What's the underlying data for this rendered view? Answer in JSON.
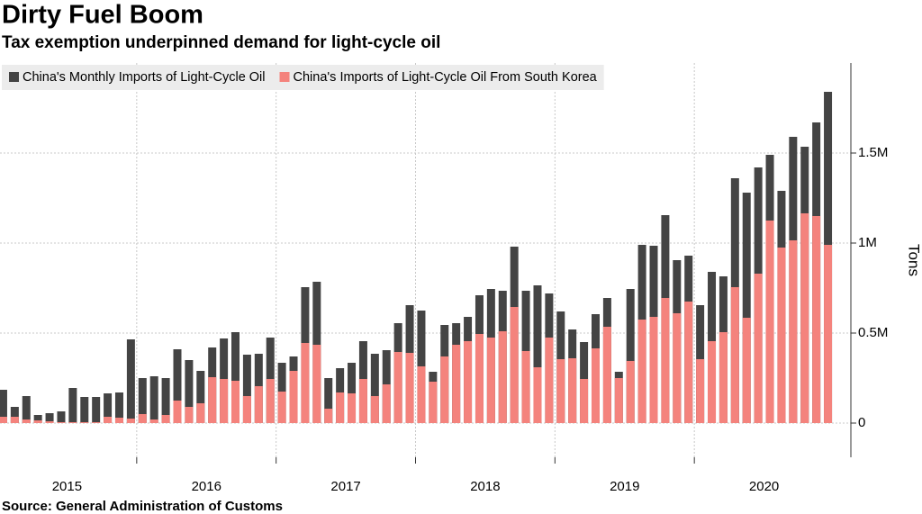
{
  "chart_data": {
    "type": "bar",
    "title": "Dirty Fuel Boom",
    "subtitle": "Tax exemption underpinned demand for light-cycle oil",
    "source": "Source:  General Administration of Customs",
    "y_label": "Tons",
    "year_labels": [
      "2015",
      "2016",
      "2017",
      "2018",
      "2019",
      "2020"
    ],
    "categories": [
      null,
      null,
      null,
      null,
      null,
      null,
      null,
      null,
      null,
      null,
      null,
      null,
      null,
      null,
      null,
      null,
      null,
      null,
      null,
      null,
      null,
      null,
      null,
      null,
      null,
      null,
      null,
      null,
      null,
      null,
      null,
      null,
      null,
      null,
      null,
      null,
      null,
      null,
      null,
      null,
      null,
      null,
      null,
      null,
      null,
      null,
      null,
      null,
      null,
      null,
      null,
      null,
      null,
      null,
      null,
      null,
      null,
      null,
      null,
      null,
      null,
      null,
      null,
      null,
      null,
      null,
      null,
      null,
      null,
      null,
      null,
      null
    ],
    "series": [
      {
        "name": "China's Monthly Imports of Light-Cycle Oil",
        "color": "#444444",
        "values": [
          185000,
          90000,
          150000,
          45000,
          55000,
          65000,
          195000,
          145000,
          145000,
          165000,
          170000,
          465000,
          250000,
          260000,
          250000,
          410000,
          350000,
          290000,
          420000,
          470000,
          505000,
          380000,
          385000,
          475000,
          335000,
          370000,
          755000,
          785000,
          250000,
          305000,
          335000,
          455000,
          385000,
          405000,
          555000,
          655000,
          625000,
          285000,
          545000,
          555000,
          590000,
          710000,
          745000,
          735000,
          980000,
          735000,
          765000,
          720000,
          620000,
          520000,
          450000,
          605000,
          695000,
          285000,
          745000,
          990000,
          985000,
          1155000,
          905000,
          930000,
          655000,
          840000,
          815000,
          1360000,
          1280000,
          1420000,
          1490000,
          1290000,
          1590000,
          1535000,
          1670000,
          1840000
        ]
      },
      {
        "name": "China's Imports of Light-Cycle Oil From South Korea",
        "color": "#f4837d",
        "values": [
          35000,
          35000,
          20000,
          15000,
          10000,
          5000,
          5000,
          5000,
          5000,
          35000,
          30000,
          25000,
          50000,
          20000,
          45000,
          125000,
          90000,
          110000,
          255000,
          245000,
          235000,
          150000,
          205000,
          245000,
          175000,
          290000,
          445000,
          435000,
          80000,
          170000,
          165000,
          245000,
          150000,
          215000,
          395000,
          390000,
          315000,
          230000,
          370000,
          435000,
          455000,
          495000,
          475000,
          510000,
          645000,
          400000,
          310000,
          475000,
          355000,
          360000,
          245000,
          415000,
          535000,
          250000,
          345000,
          575000,
          590000,
          695000,
          610000,
          675000,
          355000,
          455000,
          505000,
          755000,
          585000,
          830000,
          1125000,
          975000,
          1015000,
          1165000,
          1150000,
          990000
        ]
      }
    ],
    "ylim": [
      -190000,
      2000000
    ],
    "yticks": [
      0,
      {
        "value": 500000,
        "label": "0.5M"
      },
      {
        "value": 1000000,
        "label": "1M"
      },
      {
        "value": 1500000,
        "label": "1.5M"
      }
    ],
    "grid": true
  }
}
